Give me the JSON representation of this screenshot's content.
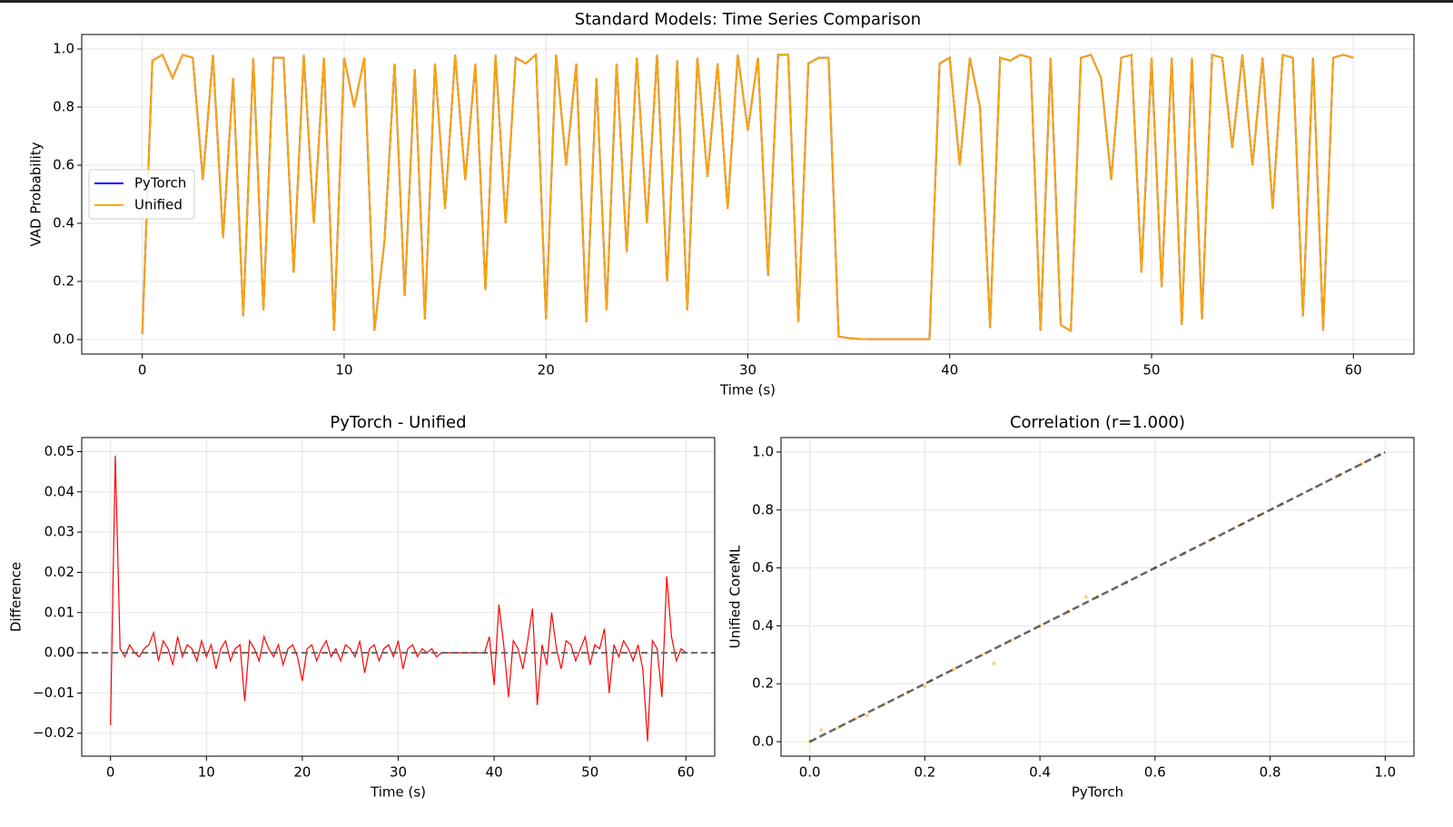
{
  "chart_data": [
    {
      "type": "line",
      "title": "Standard Models: Time Series Comparison",
      "xlabel": "Time (s)",
      "ylabel": "VAD Probability",
      "x": [
        0,
        0.5,
        1,
        1.5,
        2,
        2.5,
        3,
        3.5,
        4,
        4.5,
        5,
        5.5,
        6,
        6.5,
        7,
        7.5,
        8,
        8.5,
        9,
        9.5,
        10,
        10.5,
        11,
        11.5,
        12,
        12.5,
        13,
        13.5,
        14,
        14.5,
        15,
        15.5,
        16,
        16.5,
        17,
        17.5,
        18,
        18.5,
        19,
        19.5,
        20,
        20.5,
        21,
        21.5,
        22,
        22.5,
        23,
        23.5,
        24,
        24.5,
        25,
        25.5,
        26,
        26.5,
        27,
        27.5,
        28,
        28.5,
        29,
        29.5,
        30,
        30.5,
        31,
        31.5,
        32,
        32.5,
        33,
        33.5,
        34,
        34.5,
        35,
        35.5,
        36,
        36.5,
        37,
        37.5,
        38,
        38.5,
        39,
        39.5,
        40,
        40.5,
        41,
        41.5,
        42,
        42.5,
        43,
        43.5,
        44,
        44.5,
        45,
        45.5,
        46,
        46.5,
        47,
        47.5,
        48,
        48.5,
        49,
        49.5,
        50,
        50.5,
        51,
        51.5,
        52,
        52.5,
        53,
        53.5,
        54,
        54.5,
        55,
        55.5,
        56,
        56.5,
        57,
        57.5,
        58,
        58.5,
        59,
        59.5,
        60
      ],
      "series": [
        {
          "name": "PyTorch",
          "color": "#0000ff",
          "values": [
            0.02,
            0.96,
            0.98,
            0.9,
            0.98,
            0.97,
            0.55,
            0.98,
            0.35,
            0.9,
            0.08,
            0.97,
            0.1,
            0.97,
            0.97,
            0.23,
            0.98,
            0.4,
            0.97,
            0.03,
            0.97,
            0.8,
            0.97,
            0.03,
            0.34,
            0.95,
            0.15,
            0.93,
            0.07,
            0.95,
            0.45,
            0.98,
            0.55,
            0.95,
            0.17,
            0.98,
            0.4,
            0.97,
            0.95,
            0.98,
            0.07,
            0.98,
            0.6,
            0.95,
            0.06,
            0.9,
            0.1,
            0.95,
            0.3,
            0.97,
            0.4,
            0.98,
            0.2,
            0.96,
            0.1,
            0.97,
            0.56,
            0.95,
            0.45,
            0.98,
            0.72,
            0.97,
            0.22,
            0.98,
            0.98,
            0.06,
            0.95,
            0.97,
            0.97,
            0.01,
            0.005,
            0.002,
            0.001,
            0.001,
            0.001,
            0.001,
            0.001,
            0.001,
            0.001,
            0.95,
            0.97,
            0.6,
            0.97,
            0.8,
            0.04,
            0.97,
            0.96,
            0.98,
            0.97,
            0.03,
            0.97,
            0.05,
            0.03,
            0.97,
            0.98,
            0.9,
            0.55,
            0.97,
            0.98,
            0.23,
            0.97,
            0.18,
            0.97,
            0.05,
            0.97,
            0.07,
            0.98,
            0.97,
            0.66,
            0.98,
            0.6,
            0.97,
            0.45,
            0.98,
            0.97,
            0.08,
            0.97,
            0.03,
            0.97,
            0.98,
            0.97
          ]
        },
        {
          "name": "Unified",
          "color": "#ffa500",
          "values": [
            0.02,
            0.96,
            0.98,
            0.9,
            0.98,
            0.97,
            0.55,
            0.98,
            0.35,
            0.9,
            0.08,
            0.97,
            0.1,
            0.97,
            0.97,
            0.23,
            0.98,
            0.4,
            0.97,
            0.03,
            0.97,
            0.8,
            0.97,
            0.03,
            0.34,
            0.95,
            0.15,
            0.93,
            0.07,
            0.95,
            0.45,
            0.98,
            0.55,
            0.95,
            0.17,
            0.98,
            0.4,
            0.97,
            0.95,
            0.98,
            0.07,
            0.98,
            0.6,
            0.95,
            0.06,
            0.9,
            0.1,
            0.95,
            0.3,
            0.97,
            0.4,
            0.98,
            0.2,
            0.96,
            0.1,
            0.97,
            0.56,
            0.95,
            0.45,
            0.98,
            0.72,
            0.97,
            0.22,
            0.98,
            0.98,
            0.06,
            0.95,
            0.97,
            0.97,
            0.01,
            0.005,
            0.002,
            0.001,
            0.001,
            0.001,
            0.001,
            0.001,
            0.001,
            0.001,
            0.95,
            0.97,
            0.6,
            0.97,
            0.8,
            0.04,
            0.97,
            0.96,
            0.98,
            0.97,
            0.03,
            0.97,
            0.05,
            0.03,
            0.97,
            0.98,
            0.9,
            0.55,
            0.97,
            0.98,
            0.23,
            0.97,
            0.18,
            0.97,
            0.05,
            0.97,
            0.07,
            0.98,
            0.97,
            0.66,
            0.98,
            0.6,
            0.97,
            0.45,
            0.98,
            0.97,
            0.08,
            0.97,
            0.03,
            0.97,
            0.98,
            0.97
          ]
        }
      ],
      "legend": "center left",
      "grid": true,
      "xlim": [
        -3,
        63
      ],
      "ylim": [
        -0.05,
        1.05
      ],
      "xticks": [
        0,
        10,
        20,
        30,
        40,
        50,
        60
      ],
      "yticks": [
        {
          "value": 0,
          "label": "0.0"
        },
        {
          "value": 0.2,
          "label": "0.2"
        },
        {
          "value": 0.4,
          "label": "0.4"
        },
        {
          "value": 0.6,
          "label": "0.6"
        },
        {
          "value": 0.8,
          "label": "0.8"
        },
        {
          "value": 1,
          "label": "1.0"
        }
      ]
    },
    {
      "type": "line",
      "title": "PyTorch - Unified",
      "xlabel": "Time (s)",
      "ylabel": "Difference",
      "x": [
        0,
        0.5,
        1,
        1.5,
        2,
        2.5,
        3,
        3.5,
        4,
        4.5,
        5,
        5.5,
        6,
        6.5,
        7,
        7.5,
        8,
        8.5,
        9,
        9.5,
        10,
        10.5,
        11,
        11.5,
        12,
        12.5,
        13,
        13.5,
        14,
        14.5,
        15,
        15.5,
        16,
        16.5,
        17,
        17.5,
        18,
        18.5,
        19,
        19.5,
        20,
        20.5,
        21,
        21.5,
        22,
        22.5,
        23,
        23.5,
        24,
        24.5,
        25,
        25.5,
        26,
        26.5,
        27,
        27.5,
        28,
        28.5,
        29,
        29.5,
        30,
        30.5,
        31,
        31.5,
        32,
        32.5,
        33,
        33.5,
        34,
        34.5,
        35,
        35.5,
        36,
        36.5,
        37,
        37.5,
        38,
        38.5,
        39,
        39.5,
        40,
        40.5,
        41,
        41.5,
        42,
        42.5,
        43,
        43.5,
        44,
        44.5,
        45,
        45.5,
        46,
        46.5,
        47,
        47.5,
        48,
        48.5,
        49,
        49.5,
        50,
        50.5,
        51,
        51.5,
        52,
        52.5,
        53,
        53.5,
        54,
        54.5,
        55,
        55.5,
        56,
        56.5,
        57,
        57.5,
        58,
        58.5,
        59,
        59.5,
        60
      ],
      "series": [
        {
          "color": "#ff0000",
          "values": [
            -0.018,
            0.049,
            0.001,
            -0.001,
            0.002,
            0,
            -0.001,
            0.001,
            0.002,
            0.005,
            -0.002,
            0.003,
            0.001,
            -0.003,
            0.004,
            -0.001,
            0.002,
            0.001,
            -0.002,
            0.003,
            -0.001,
            0.002,
            -0.004,
            0.001,
            0.003,
            -0.002,
            0.001,
            0.002,
            -0.012,
            0.003,
            0.001,
            -0.002,
            0.004,
            0.001,
            -0.001,
            0.002,
            -0.003,
            0.001,
            0.002,
            -0.001,
            -0.007,
            0.001,
            0.002,
            -0.002,
            0.001,
            0.003,
            -0.001,
            0.001,
            -0.002,
            0.002,
            0.001,
            -0.001,
            0.003,
            -0.005,
            0.001,
            0.002,
            -0.002,
            0.001,
            0.002,
            -0.001,
            0.003,
            -0.004,
            0.001,
            0.002,
            -0.001,
            0.001,
            0,
            0.001,
            -0.001,
            0,
            0,
            0,
            0,
            0,
            0,
            0,
            0,
            0,
            0,
            0.004,
            -0.008,
            0.012,
            0.002,
            -0.011,
            0.003,
            0.001,
            -0.004,
            0.003,
            0.011,
            -0.013,
            0.002,
            -0.003,
            0.01,
            0.001,
            -0.004,
            0.003,
            0.002,
            -0.002,
            0.001,
            0.004,
            -0.003,
            0.002,
            0.001,
            0.006,
            -0.01,
            0.002,
            -0.001,
            0.003,
            0.001,
            -0.002,
            0.002,
            -0.004,
            -0.022,
            0.003,
            0.001,
            -0.011,
            0.019,
            0.004,
            -0.002,
            0.001,
            0
          ]
        }
      ],
      "hline": 0,
      "grid": true,
      "xlim": [
        -3,
        63
      ],
      "ylim": [
        -0.0257,
        0.0535
      ],
      "xticks": [
        0,
        10,
        20,
        30,
        40,
        50,
        60
      ],
      "yticks": [
        {
          "value": -0.02,
          "label": "−0.02"
        },
        {
          "value": -0.01,
          "label": "−0.01"
        },
        {
          "value": 0,
          "label": "0.00"
        },
        {
          "value": 0.01,
          "label": "0.01"
        },
        {
          "value": 0.02,
          "label": "0.02"
        },
        {
          "value": 0.03,
          "label": "0.03"
        },
        {
          "value": 0.04,
          "label": "0.04"
        },
        {
          "value": 0.05,
          "label": "0.05"
        }
      ]
    },
    {
      "type": "scatter",
      "title": "Correlation (r=1.000)",
      "xlabel": "PyTorch",
      "ylabel": "Unified CoreML",
      "x": [
        0,
        0.02,
        0.05,
        0.08,
        0.1,
        0.13,
        0.17,
        0.2,
        0.21,
        0.25,
        0.3,
        0.32,
        0.35,
        0.4,
        0.45,
        0.48,
        0.5,
        0.55,
        0.6,
        0.65,
        0.7,
        0.75,
        0.78,
        0.82,
        0.88,
        0.92,
        0.96,
        0.99
      ],
      "values": [
        0,
        0.04,
        0.05,
        0.08,
        0.09,
        0.13,
        0.17,
        0.19,
        0.21,
        0.25,
        0.3,
        0.27,
        0.35,
        0.4,
        0.45,
        0.5,
        0.5,
        0.55,
        0.6,
        0.65,
        0.7,
        0.75,
        0.78,
        0.82,
        0.88,
        0.92,
        0.96,
        0.99
      ],
      "color": "#ffa500",
      "ref_line": [
        0,
        1
      ],
      "grid": true,
      "xlim": [
        -0.05,
        1.05
      ],
      "ylim": [
        -0.05,
        1.05
      ],
      "xticks": [
        {
          "value": 0,
          "label": "0.0"
        },
        {
          "value": 0.2,
          "label": "0.2"
        },
        {
          "value": 0.4,
          "label": "0.4"
        },
        {
          "value": 0.6,
          "label": "0.6"
        },
        {
          "value": 0.8,
          "label": "0.8"
        },
        {
          "value": 1,
          "label": "1.0"
        }
      ],
      "yticks": [
        {
          "value": 0,
          "label": "0.0"
        },
        {
          "value": 0.2,
          "label": "0.2"
        },
        {
          "value": 0.4,
          "label": "0.4"
        },
        {
          "value": 0.6,
          "label": "0.6"
        },
        {
          "value": 0.8,
          "label": "0.8"
        },
        {
          "value": 1,
          "label": "1.0"
        }
      ]
    }
  ]
}
